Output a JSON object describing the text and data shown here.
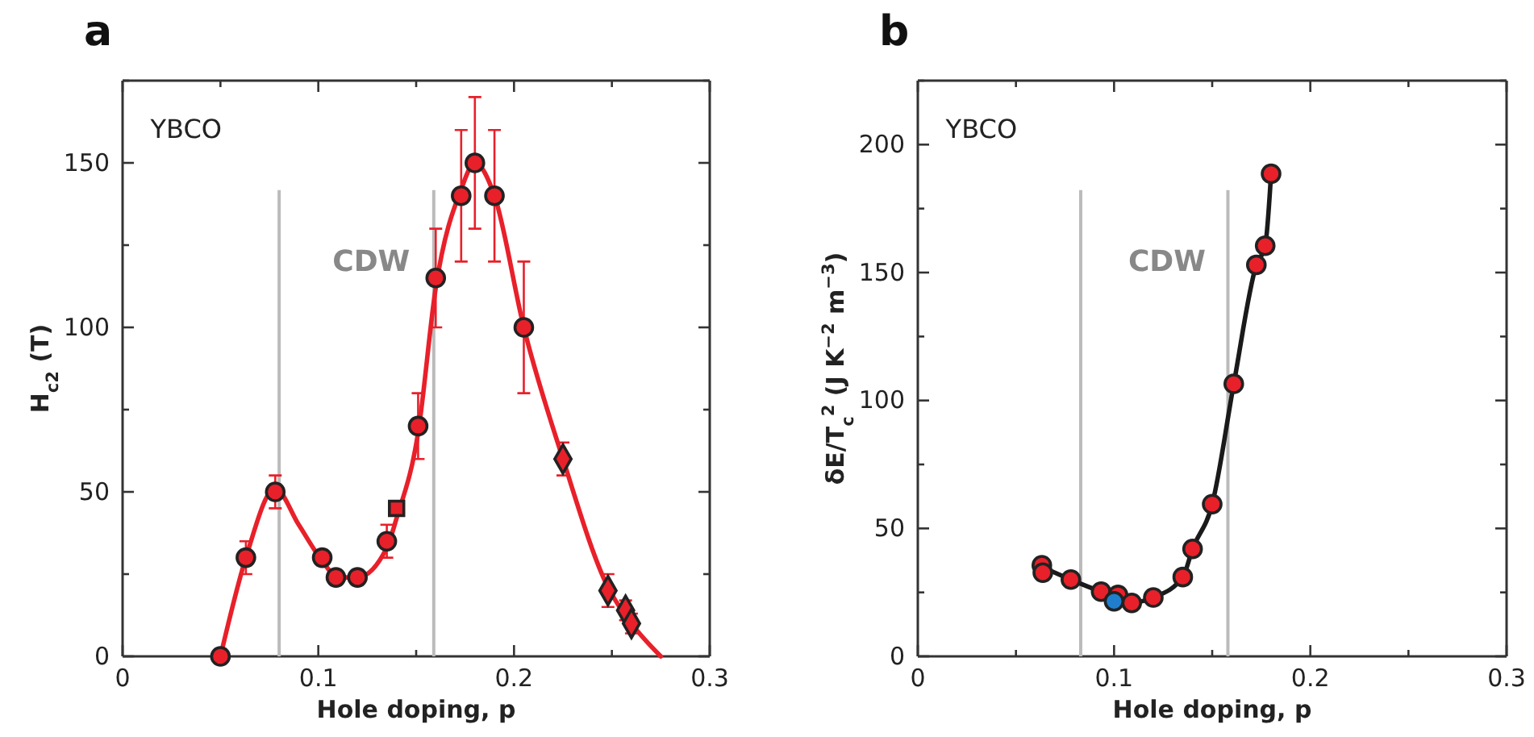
{
  "chart_data": [
    {
      "type": "scatter",
      "title": "a",
      "xlabel": "Hole doping, p",
      "ylabel": "H$_{c2}$ (T)",
      "xlim": [
        0,
        0.3
      ],
      "xticks": [
        0,
        {
          "value": 0.05,
          "label": null
        },
        0.1,
        {
          "value": 0.15,
          "label": null
        },
        0.2,
        {
          "value": 0.25,
          "label": null
        },
        0.3
      ],
      "ylim": [
        0,
        175
      ],
      "yticks": [
        0,
        {
          "value": 25,
          "label": null
        },
        50,
        {
          "value": 75,
          "label": null
        },
        100,
        {
          "value": 125,
          "label": null
        },
        150,
        {
          "value": 175,
          "label": null
        }
      ],
      "annotations": [
        "YBCO",
        "CDW"
      ],
      "ref_lines": [
        {
          "axis": "x",
          "value": 0.08,
          "color": "#bbbbbb"
        },
        {
          "axis": "x",
          "value": 0.159,
          "color": "#bbbbbb"
        }
      ],
      "series": [
        {
          "type": "line",
          "color": "#e8202a",
          "marker": "none",
          "x": [
            0.05,
            0.063,
            0.078,
            0.09,
            0.102,
            0.11,
            0.12,
            0.135,
            0.14,
            0.151,
            0.16,
            0.173,
            0.18,
            0.19,
            0.205,
            0.225,
            0.248,
            0.26,
            0.275
          ],
          "values": [
            0,
            30,
            51,
            40,
            29,
            24,
            24,
            33,
            42,
            68,
            112,
            142,
            150,
            140,
            100,
            60,
            21,
            10,
            0
          ]
        },
        {
          "type": "scatter",
          "color": "#e8202a",
          "marker": "circle",
          "x": [
            0.05,
            0.063,
            0.078,
            0.102,
            0.109,
            0.12,
            0.135,
            0.151,
            0.16,
            0.173,
            0.18,
            0.19,
            0.205
          ],
          "values": [
            0,
            30,
            50,
            30,
            24,
            24,
            35,
            70,
            115,
            140,
            150,
            140,
            100
          ],
          "errors": [
            null,
            5,
            5,
            null,
            null,
            null,
            5,
            10,
            15,
            20,
            20,
            20,
            20
          ]
        },
        {
          "type": "scatter",
          "color": "#e8202a",
          "marker": "square",
          "x": [
            0.14
          ],
          "values": [
            45
          ]
        },
        {
          "type": "scatter",
          "color": "#e8202a",
          "marker": "diamond",
          "x": [
            0.225,
            0.248,
            0.257,
            0.26
          ],
          "values": [
            60,
            20,
            14,
            10
          ],
          "errors": [
            5,
            5,
            3,
            3
          ]
        }
      ]
    },
    {
      "type": "scatter",
      "title": "b",
      "xlabel": "Hole doping, p",
      "ylabel": "δE/T$_{c}$$^{2}$ (J K$^{−2}$ m$^{−3}$)",
      "xlim": [
        0,
        0.3
      ],
      "xticks": [
        0,
        {
          "value": 0.05,
          "label": null
        },
        0.1,
        {
          "value": 0.15,
          "label": null
        },
        0.2,
        {
          "value": 0.25,
          "label": null
        },
        0.3
      ],
      "ylim": [
        0,
        225
      ],
      "yticks": [
        0,
        {
          "value": 25,
          "label": null
        },
        50,
        {
          "value": 75,
          "label": null
        },
        100,
        {
          "value": 125,
          "label": null
        },
        150,
        {
          "value": 175,
          "label": null
        },
        200,
        {
          "value": 225,
          "label": null
        }
      ],
      "annotations": [
        "YBCO",
        "CDW"
      ],
      "ref_lines": [
        {
          "axis": "x",
          "value": 0.083,
          "color": "#bbbbbb"
        },
        {
          "axis": "x",
          "value": 0.158,
          "color": "#bbbbbb"
        }
      ],
      "series": [
        {
          "type": "line",
          "color": "#1a1a1a",
          "marker": "none",
          "x": [
            0.0632,
            0.078,
            0.0934,
            0.102,
            0.109,
            0.12,
            0.135,
            0.14,
            0.15,
            0.161,
            0.1725,
            0.177,
            0.18
          ],
          "values": [
            35,
            30,
            25.3,
            23,
            21,
            23,
            31,
            42,
            59.5,
            106.5,
            153,
            160.5,
            188.6
          ]
        },
        {
          "type": "scatter",
          "color": "#e8202a",
          "marker": "circle",
          "x": [
            0.0632,
            0.0637,
            0.078,
            0.0934,
            0.102,
            0.109,
            0.12,
            0.135,
            0.14,
            0.15,
            0.161,
            0.1725,
            0.177,
            0.18
          ],
          "values": [
            35.6,
            32.7,
            30,
            25.3,
            24,
            20.9,
            23,
            31,
            42,
            59.5,
            106.5,
            153,
            160.5,
            188.6
          ]
        },
        {
          "type": "scatter",
          "color": "#1f7fcc",
          "marker": "circle",
          "x": [
            0.1
          ],
          "values": [
            21.5
          ]
        }
      ]
    }
  ]
}
